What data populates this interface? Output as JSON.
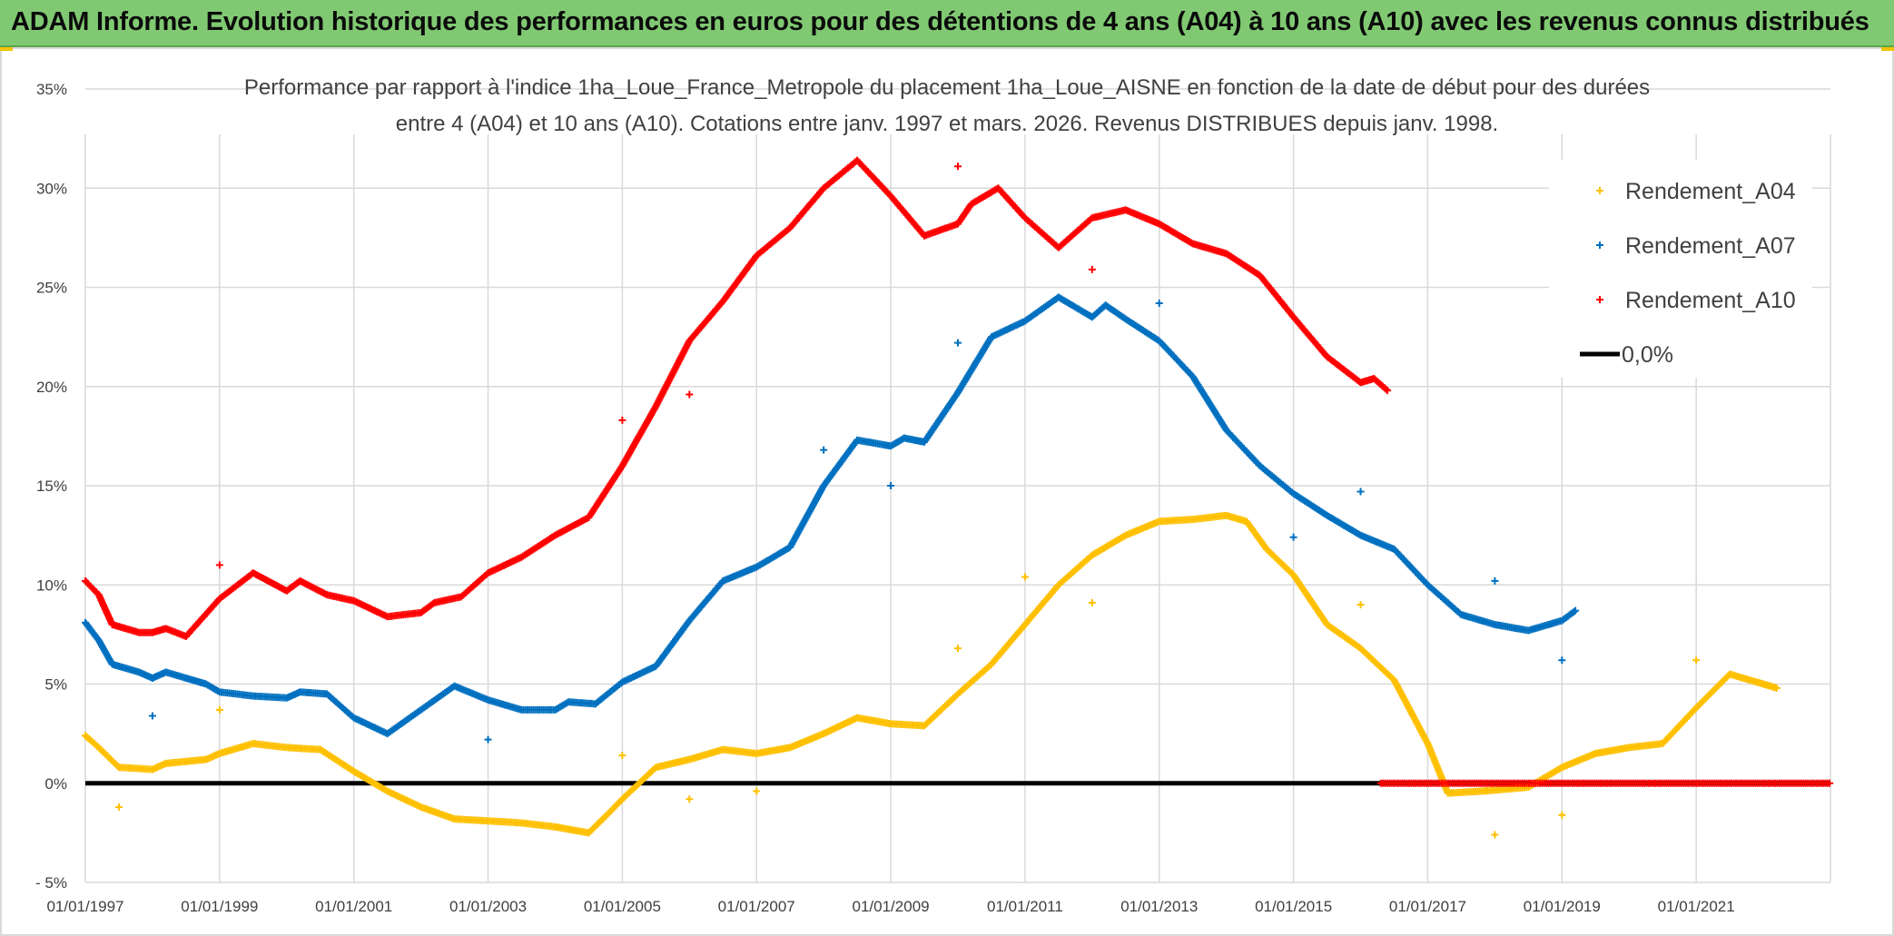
{
  "header": {
    "title": "ADAM Informe. Evolution historique des performances en euros pour des détentions de 4 ans (A04) à 10 ans (A10) avec les revenus connus distribués"
  },
  "colors": {
    "banner": "#80c972",
    "a04": "#ffc000",
    "a07": "#0070c0",
    "a10": "#ff0000",
    "zero": "#000000",
    "grid": "#d9d9d9"
  },
  "chart_data": {
    "type": "scatter",
    "title_lines": [
      "Performance par rapport à l'indice 1ha_Loue_France_Metropole  du placement 1ha_Loue_AISNE en fonction de la date de début pour des durées",
      "entre 4 (A04) et 10 ans (A10). Cotations entre janv. 1997 et mars. 2026. Revenus DISTRIBUES depuis janv. 1998."
    ],
    "x_ticks": [
      "01/01/1997",
      "01/01/1999",
      "01/01/2001",
      "01/01/2003",
      "01/01/2005",
      "01/01/2007",
      "01/01/2009",
      "01/01/2011",
      "01/01/2013",
      "01/01/2015",
      "01/01/2017",
      "01/01/2019",
      "01/01/2021"
    ],
    "y_ticks": [
      "35%",
      "30%",
      "25%",
      "20%",
      "15%",
      "10%",
      "5%",
      "0%",
      "- 5%"
    ],
    "xlim": [
      1997.0,
      2023.0
    ],
    "ylim": [
      -5,
      35
    ],
    "legend_position": "top-right",
    "series": [
      {
        "name": "Rendement_A04",
        "marker": "plus",
        "points": [
          [
            1997.0,
            2.4
          ],
          [
            1997.2,
            1.8
          ],
          [
            1997.5,
            0.8
          ],
          [
            1998.0,
            0.7
          ],
          [
            1998.2,
            1.0
          ],
          [
            1998.8,
            1.2
          ],
          [
            1999.0,
            1.5
          ],
          [
            1999.5,
            2.0
          ],
          [
            2000.0,
            1.8
          ],
          [
            2000.5,
            1.7
          ],
          [
            2001.0,
            0.6
          ],
          [
            2001.5,
            -0.4
          ],
          [
            2002.0,
            -1.2
          ],
          [
            2002.5,
            -1.8
          ],
          [
            2003.0,
            -1.9
          ],
          [
            2003.5,
            -2.0
          ],
          [
            2004.0,
            -2.2
          ],
          [
            2004.5,
            -2.5
          ],
          [
            2004.8,
            -1.5
          ],
          [
            2005.0,
            -0.8
          ],
          [
            2005.5,
            0.8
          ],
          [
            2006.0,
            1.2
          ],
          [
            2006.5,
            1.7
          ],
          [
            2007.0,
            1.5
          ],
          [
            2007.5,
            1.8
          ],
          [
            2008.0,
            2.5
          ],
          [
            2008.5,
            3.3
          ],
          [
            2009.0,
            3.0
          ],
          [
            2009.5,
            2.9
          ],
          [
            2010.0,
            4.5
          ],
          [
            2010.5,
            6.0
          ],
          [
            2011.0,
            8.0
          ],
          [
            2011.5,
            10.0
          ],
          [
            2012.0,
            11.5
          ],
          [
            2012.5,
            12.5
          ],
          [
            2013.0,
            13.2
          ],
          [
            2013.5,
            13.3
          ],
          [
            2014.0,
            13.5
          ],
          [
            2014.3,
            13.2
          ],
          [
            2014.6,
            11.8
          ],
          [
            2015.0,
            10.5
          ],
          [
            2015.5,
            8.0
          ],
          [
            2016.0,
            6.8
          ],
          [
            2016.5,
            5.2
          ],
          [
            2017.0,
            2.0
          ],
          [
            2017.3,
            -0.5
          ],
          [
            2017.8,
            -0.4
          ],
          [
            2018.5,
            -0.2
          ],
          [
            2019.0,
            0.8
          ],
          [
            2019.5,
            1.5
          ],
          [
            2020.0,
            1.8
          ],
          [
            2020.5,
            2.0
          ],
          [
            2021.0,
            3.8
          ],
          [
            2021.5,
            5.5
          ],
          [
            2022.0,
            5.0
          ],
          [
            2022.2,
            4.8
          ],
          [
            1997.5,
            -1.2
          ],
          [
            1999.0,
            3.7
          ],
          [
            2005.0,
            1.4
          ],
          [
            2006.0,
            -0.8
          ],
          [
            2007.0,
            -0.4
          ],
          [
            2010.0,
            6.8
          ],
          [
            2011.0,
            10.4
          ],
          [
            2012.0,
            9.1
          ],
          [
            2016.0,
            9.0
          ],
          [
            2018.0,
            -2.6
          ],
          [
            2019.0,
            -1.6
          ],
          [
            2021.0,
            6.2
          ]
        ]
      },
      {
        "name": "Rendement_A07",
        "marker": "plus",
        "points": [
          [
            1997.0,
            8.1
          ],
          [
            1997.2,
            7.2
          ],
          [
            1997.4,
            6.0
          ],
          [
            1997.8,
            5.6
          ],
          [
            1998.0,
            5.3
          ],
          [
            1998.2,
            5.6
          ],
          [
            1998.8,
            5.0
          ],
          [
            1999.0,
            4.6
          ],
          [
            1999.5,
            4.4
          ],
          [
            2000.0,
            4.3
          ],
          [
            2000.2,
            4.6
          ],
          [
            2000.6,
            4.5
          ],
          [
            2001.0,
            3.3
          ],
          [
            2001.5,
            2.5
          ],
          [
            2002.0,
            3.7
          ],
          [
            2002.5,
            4.9
          ],
          [
            2003.0,
            4.2
          ],
          [
            2003.5,
            3.7
          ],
          [
            2004.0,
            3.7
          ],
          [
            2004.2,
            4.1
          ],
          [
            2004.6,
            4.0
          ],
          [
            2005.0,
            5.1
          ],
          [
            2005.5,
            5.9
          ],
          [
            2006.0,
            8.2
          ],
          [
            2006.5,
            10.2
          ],
          [
            2007.0,
            10.9
          ],
          [
            2007.5,
            11.9
          ],
          [
            2008.0,
            15.0
          ],
          [
            2008.5,
            17.3
          ],
          [
            2009.0,
            17.0
          ],
          [
            2009.2,
            17.4
          ],
          [
            2009.5,
            17.2
          ],
          [
            2010.0,
            19.7
          ],
          [
            2010.5,
            22.5
          ],
          [
            2011.0,
            23.3
          ],
          [
            2011.5,
            24.5
          ],
          [
            2012.0,
            23.5
          ],
          [
            2012.2,
            24.1
          ],
          [
            2012.5,
            23.4
          ],
          [
            2013.0,
            22.3
          ],
          [
            2013.5,
            20.5
          ],
          [
            2014.0,
            17.8
          ],
          [
            2014.5,
            16.0
          ],
          [
            2015.0,
            14.6
          ],
          [
            2015.5,
            13.5
          ],
          [
            2016.0,
            12.5
          ],
          [
            2016.5,
            11.8
          ],
          [
            2017.0,
            10.0
          ],
          [
            2017.5,
            8.5
          ],
          [
            2018.0,
            8.0
          ],
          [
            2018.5,
            7.7
          ],
          [
            2019.0,
            8.2
          ],
          [
            2019.2,
            8.7
          ],
          [
            1998.0,
            3.4
          ],
          [
            2003.0,
            2.2
          ],
          [
            2008.0,
            16.8
          ],
          [
            2009.0,
            15.0
          ],
          [
            2010.0,
            22.2
          ],
          [
            2013.0,
            24.2
          ],
          [
            2015.0,
            12.4
          ],
          [
            2016.0,
            14.7
          ],
          [
            2018.0,
            10.2
          ],
          [
            2019.0,
            6.2
          ]
        ]
      },
      {
        "name": "Rendement_A10",
        "marker": "plus",
        "points": [
          [
            1997.0,
            10.2
          ],
          [
            1997.2,
            9.5
          ],
          [
            1997.4,
            8.0
          ],
          [
            1997.8,
            7.6
          ],
          [
            1998.0,
            7.6
          ],
          [
            1998.2,
            7.8
          ],
          [
            1998.5,
            7.4
          ],
          [
            1999.0,
            9.3
          ],
          [
            1999.5,
            10.6
          ],
          [
            2000.0,
            9.7
          ],
          [
            2000.2,
            10.2
          ],
          [
            2000.6,
            9.5
          ],
          [
            2001.0,
            9.2
          ],
          [
            2001.5,
            8.4
          ],
          [
            2002.0,
            8.6
          ],
          [
            2002.2,
            9.1
          ],
          [
            2002.6,
            9.4
          ],
          [
            2003.0,
            10.6
          ],
          [
            2003.5,
            11.4
          ],
          [
            2004.0,
            12.5
          ],
          [
            2004.5,
            13.4
          ],
          [
            2005.0,
            16.0
          ],
          [
            2005.5,
            19.0
          ],
          [
            2006.0,
            22.3
          ],
          [
            2006.5,
            24.3
          ],
          [
            2007.0,
            26.6
          ],
          [
            2007.5,
            28.0
          ],
          [
            2008.0,
            30.0
          ],
          [
            2008.5,
            31.4
          ],
          [
            2009.0,
            29.6
          ],
          [
            2009.5,
            27.6
          ],
          [
            2010.0,
            28.2
          ],
          [
            2010.2,
            29.2
          ],
          [
            2010.6,
            30.0
          ],
          [
            2011.0,
            28.5
          ],
          [
            2011.5,
            27.0
          ],
          [
            2012.0,
            28.5
          ],
          [
            2012.5,
            28.9
          ],
          [
            2013.0,
            28.2
          ],
          [
            2013.5,
            27.2
          ],
          [
            2014.0,
            26.7
          ],
          [
            2014.5,
            25.6
          ],
          [
            2015.0,
            23.5
          ],
          [
            2015.5,
            21.5
          ],
          [
            2016.0,
            20.2
          ],
          [
            2016.2,
            20.4
          ],
          [
            2016.4,
            19.8
          ],
          [
            1999.0,
            11.0
          ],
          [
            2005.0,
            18.3
          ],
          [
            2006.0,
            19.6
          ],
          [
            2010.0,
            31.1
          ],
          [
            2012.0,
            25.9
          ],
          [
            2016.3,
            0.0
          ],
          [
            2023.0,
            0.0
          ]
        ]
      },
      {
        "name": "0,0%",
        "marker": "line",
        "points": [
          [
            1997.0,
            0.0
          ],
          [
            2023.0,
            0.0
          ]
        ]
      }
    ]
  }
}
